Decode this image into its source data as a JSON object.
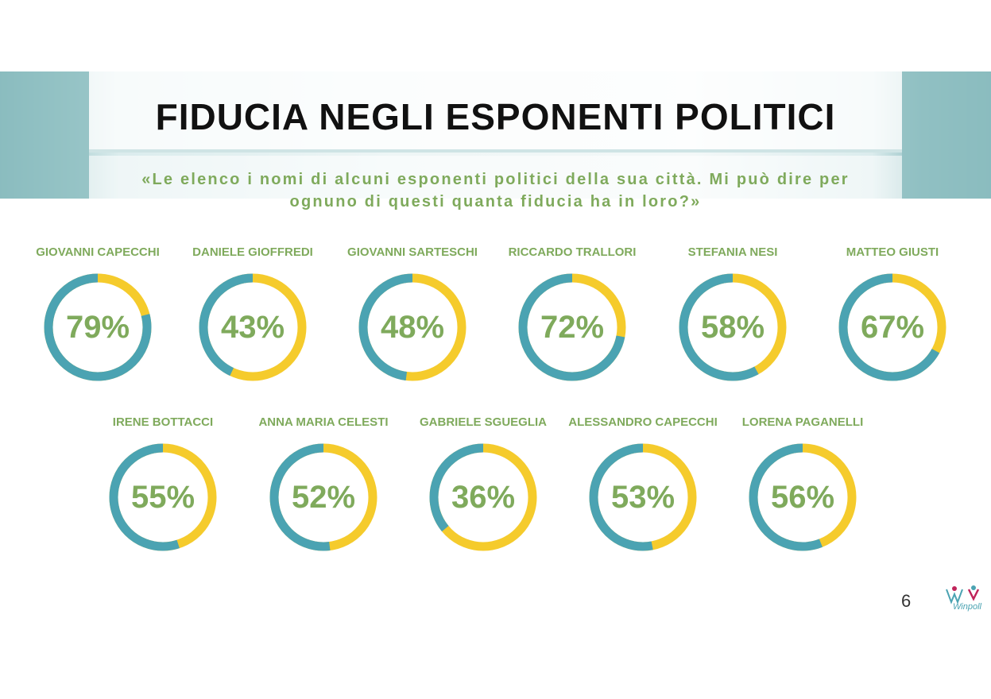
{
  "header": {
    "title": "FIDUCIA NEGLI ESPONENTI POLITICI",
    "subtitle": "«Le elenco i nomi di alcuni esponenti politici della sua città. Mi può dire per ognuno di questi quanta fiducia ha in loro?»"
  },
  "colors": {
    "accent_green": "#7faa5c",
    "ring_blue": "#4ba3b2",
    "ring_yellow": "#f5cb2c"
  },
  "footer": {
    "page_number": "6",
    "logo_text": "Winpoll"
  },
  "chart_data": {
    "type": "donut",
    "title": "FIDUCIA NEGLI ESPONENTI POLITICI",
    "unit": "%",
    "items": [
      {
        "name": "GIOVANNI CAPECCHI",
        "value": 79,
        "label": "79%"
      },
      {
        "name": "DANIELE GIOFFREDI",
        "value": 43,
        "label": "43%"
      },
      {
        "name": "GIOVANNI SARTESCHI",
        "value": 48,
        "label": "48%"
      },
      {
        "name": "RICCARDO TRALLORI",
        "value": 72,
        "label": "72%"
      },
      {
        "name": "STEFANIA NESI",
        "value": 58,
        "label": "58%"
      },
      {
        "name": "MATTEO GIUSTI",
        "value": 67,
        "label": "67%"
      },
      {
        "name": "IRENE BOTTACCI",
        "value": 55,
        "label": "55%"
      },
      {
        "name": "ANNA MARIA CELESTI",
        "value": 52,
        "label": "52%"
      },
      {
        "name": "GABRIELE SGUEGLIA",
        "value": 36,
        "label": "36%"
      },
      {
        "name": "ALESSANDRO CAPECCHI",
        "value": 53,
        "label": "53%"
      },
      {
        "name": "LORENA PAGANELLI",
        "value": 56,
        "label": "56%"
      }
    ]
  }
}
